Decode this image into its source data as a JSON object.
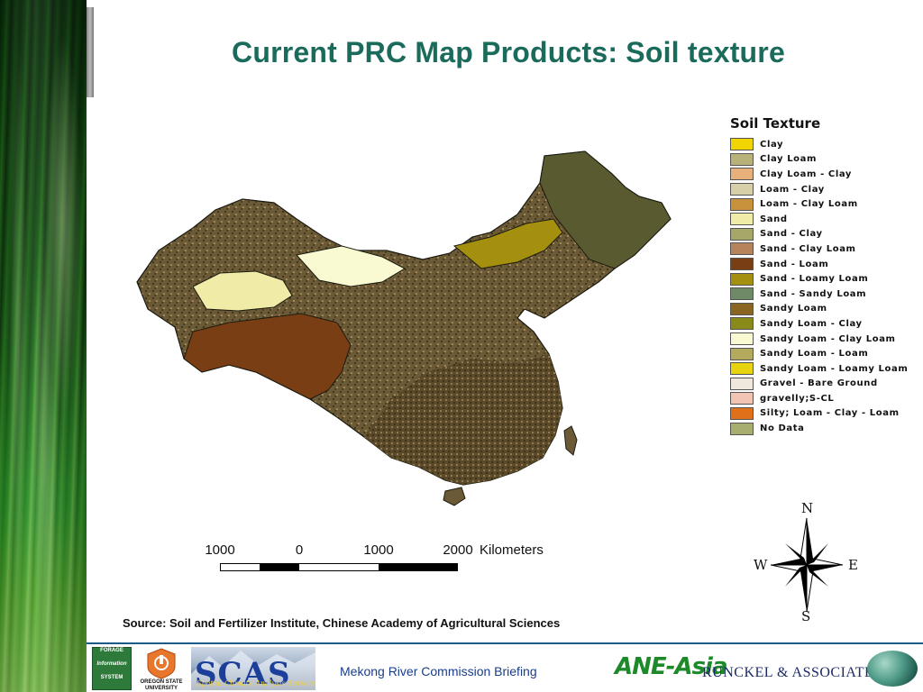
{
  "title": "Current PRC Map Products: Soil texture",
  "legend": {
    "title": "Soil Texture",
    "items": [
      {
        "label": "Clay",
        "color": "#f2d400"
      },
      {
        "label": "Clay Loam",
        "color": "#b8b27a"
      },
      {
        "label": "Clay Loam - Clay",
        "color": "#e8b07a"
      },
      {
        "label": "Loam - Clay",
        "color": "#d6cfa8"
      },
      {
        "label": "Loam - Clay Loam",
        "color": "#c8913c"
      },
      {
        "label": "Sand",
        "color": "#f0eba6"
      },
      {
        "label": "Sand - Clay",
        "color": "#a6a86a"
      },
      {
        "label": "Sand - Clay Loam",
        "color": "#b6835a"
      },
      {
        "label": "Sand - Loam",
        "color": "#7a3e14"
      },
      {
        "label": "Sand - Loamy Loam",
        "color": "#a4900e"
      },
      {
        "label": "Sand - Sandy Loam",
        "color": "#6f8a66"
      },
      {
        "label": "Sandy Loam",
        "color": "#8a6420"
      },
      {
        "label": "Sandy Loam - Clay",
        "color": "#8a8a1a"
      },
      {
        "label": "Sandy Loam - Clay Loam",
        "color": "#fafad2"
      },
      {
        "label": "Sandy Loam - Loam",
        "color": "#b4aa5e"
      },
      {
        "label": "Sandy Loam - Loamy Loam",
        "color": "#e8d40e"
      },
      {
        "label": "Gravel - Bare Ground",
        "color": "#f0e8dc"
      },
      {
        "label": "gravelly;S-CL",
        "color": "#f2c4b4"
      },
      {
        "label": "Silty; Loam - Clay - Loam",
        "color": "#e0701a"
      },
      {
        "label": "No Data",
        "color": "#a8ad70"
      }
    ]
  },
  "scale": {
    "ticks": [
      "1000",
      "0",
      "1000",
      "2000"
    ],
    "unit": "Kilometers"
  },
  "compass": {
    "n": "N",
    "s": "S",
    "e": "E",
    "w": "W"
  },
  "source": "Source: Soil and Fertilizer Institute, Chinese Academy of Agricultural Sciences",
  "footer": {
    "text": "Mekong River Commission Briefing",
    "logos": {
      "fis_lines": [
        "FORAGE",
        "Information",
        "SYSTEM"
      ],
      "osu_lines": [
        "OREGON STATE",
        "UNIVERSITY"
      ],
      "scas_big": "SCAS",
      "scas_small": "Spatial Climate Analysis Service",
      "anea": "ANE-Asia",
      "runckel": "RUNCKEL & ASSOCIATES"
    }
  },
  "map_colors": {
    "tibet": "#7a3e14",
    "north_desert": "#f0eba6",
    "sandy_basin": "#fafad2",
    "east_south": "#6b5a35",
    "northeast": "#5a5a30",
    "north_band": "#a4900e",
    "outline": "#1a1a10"
  }
}
